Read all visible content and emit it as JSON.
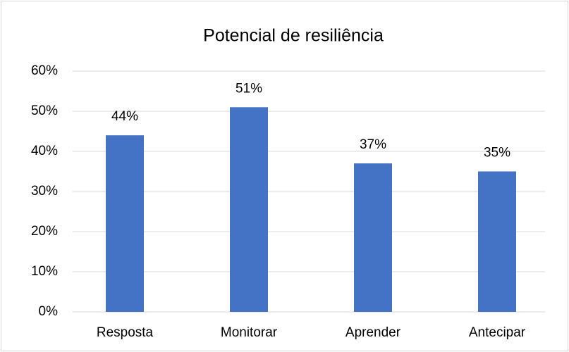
{
  "chart_data": {
    "type": "bar",
    "title": "Potencial de resiliência",
    "categories": [
      "Resposta",
      "Monitorar",
      "Aprender",
      "Antecipar"
    ],
    "values": [
      44,
      51,
      37,
      35
    ],
    "value_labels": [
      "44%",
      "51%",
      "37%",
      "35%"
    ],
    "color": "#4472c4",
    "ylim": [
      0,
      60
    ],
    "yticks": [
      {
        "value": 0,
        "label": "0%"
      },
      {
        "value": 10,
        "label": "10%"
      },
      {
        "value": 20,
        "label": "20%"
      },
      {
        "value": 30,
        "label": "30%"
      },
      {
        "value": 40,
        "label": "40%"
      },
      {
        "value": 50,
        "label": "50%"
      },
      {
        "value": 60,
        "label": "60%"
      }
    ],
    "grid": true
  }
}
